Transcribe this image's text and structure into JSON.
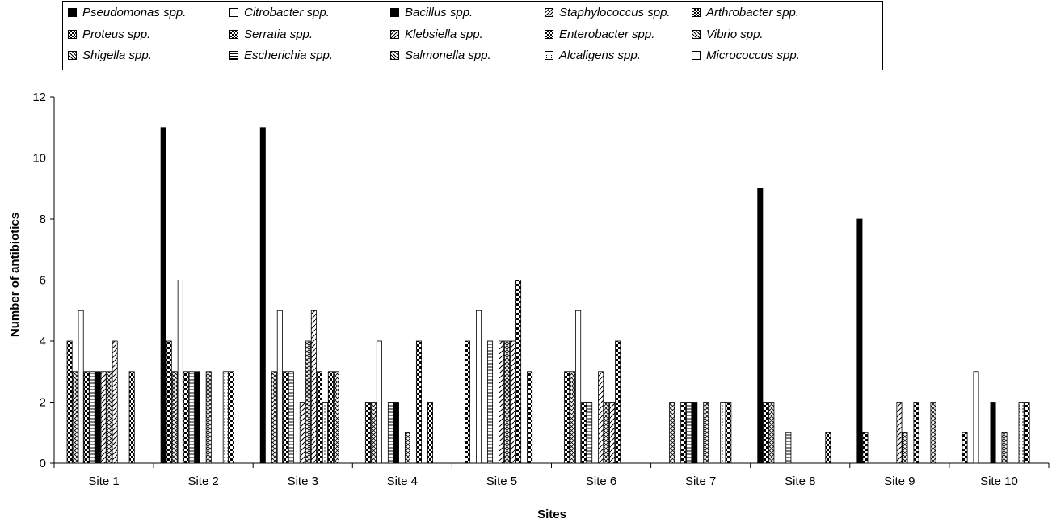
{
  "chart_data": {
    "type": "bar",
    "title": "",
    "xlabel": "Sites",
    "ylabel": "Number of antibiotics",
    "ylim": [
      0,
      12
    ],
    "yticks": [
      0,
      2,
      4,
      6,
      8,
      10,
      12
    ],
    "grid": false,
    "legend_position": "top",
    "categories": [
      "Site 1",
      "Site 2",
      "Site 3",
      "Site 4",
      "Site 5",
      "Site 6",
      "Site 7",
      "Site 8",
      "Site 9",
      "Site 10"
    ],
    "series": [
      {
        "name": "Pseudomonas spp.",
        "fill": "solid",
        "values": [
          0,
          11,
          11,
          0,
          0,
          0,
          0,
          9,
          8,
          0
        ]
      },
      {
        "name": "Proteus spp.",
        "fill": "checker",
        "values": [
          4,
          4,
          0,
          2,
          4,
          3,
          0,
          2,
          1,
          1
        ]
      },
      {
        "name": "Shigella spp.",
        "fill": "crosshatch",
        "values": [
          3,
          3,
          3,
          2,
          0,
          3,
          2,
          2,
          0,
          0
        ]
      },
      {
        "name": "Citrobacter spp.",
        "fill": "open",
        "values": [
          5,
          6,
          5,
          4,
          5,
          5,
          0,
          0,
          0,
          3
        ]
      },
      {
        "name": "Serratia spp.",
        "fill": "checker",
        "values": [
          3,
          3,
          3,
          0,
          0,
          2,
          2,
          0,
          0,
          0
        ]
      },
      {
        "name": "Escherichia spp.",
        "fill": "hbars",
        "values": [
          3,
          3,
          3,
          2,
          4,
          2,
          2,
          1,
          0,
          0
        ]
      },
      {
        "name": "Bacillus spp.",
        "fill": "solid",
        "values": [
          3,
          3,
          0,
          2,
          0,
          0,
          2,
          0,
          0,
          2
        ]
      },
      {
        "name": "Klebsiella spp.",
        "fill": "diagonal",
        "values": [
          3,
          0,
          2,
          0,
          4,
          3,
          0,
          0,
          2,
          0
        ]
      },
      {
        "name": "Salmonella spp.",
        "fill": "crosshatch",
        "values": [
          3,
          3,
          4,
          1,
          4,
          2,
          2,
          0,
          1,
          1
        ]
      },
      {
        "name": "Staphylococcus spp.",
        "fill": "diagonal",
        "values": [
          4,
          0,
          5,
          0,
          4,
          2,
          0,
          0,
          0,
          0
        ]
      },
      {
        "name": "Enterobacter spp.",
        "fill": "checker",
        "values": [
          0,
          0,
          3,
          4,
          6,
          4,
          0,
          0,
          2,
          0
        ]
      },
      {
        "name": "Alcaligens spp.",
        "fill": "dots",
        "values": [
          0,
          3,
          2,
          0,
          0,
          0,
          2,
          0,
          0,
          2
        ]
      },
      {
        "name": "Arthrobacter spp.",
        "fill": "checker",
        "values": [
          3,
          3,
          3,
          2,
          3,
          0,
          2,
          1,
          0,
          2
        ]
      },
      {
        "name": "Vibrio spp.",
        "fill": "crosshatch",
        "values": [
          0,
          0,
          3,
          0,
          0,
          0,
          0,
          0,
          2,
          0
        ]
      },
      {
        "name": "Micrococcus spp.",
        "fill": "open",
        "values": [
          0,
          0,
          0,
          0,
          0,
          0,
          0,
          0,
          0,
          0
        ]
      }
    ],
    "legend_order": [
      "Pseudomonas spp.",
      "Citrobacter spp.",
      "Bacillus spp.",
      "Staphylococcus spp.",
      "Arthrobacter spp.",
      "Proteus spp.",
      "Serratia spp.",
      "Klebsiella spp.",
      "Enterobacter spp.",
      "Vibrio spp.",
      "Shigella spp.",
      "Escherichia spp.",
      "Salmonella spp.",
      "Alcaligens spp.",
      "Micrococcus spp."
    ]
  }
}
